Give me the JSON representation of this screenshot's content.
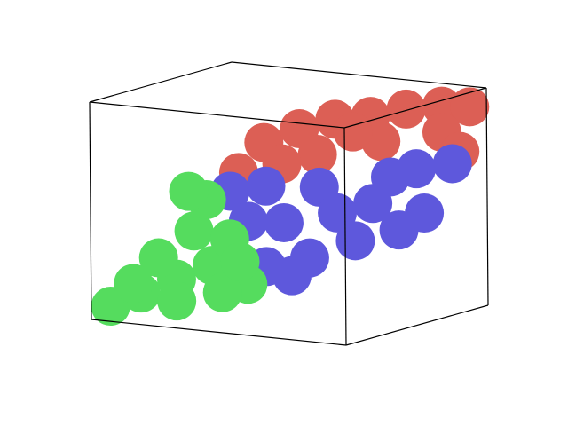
{
  "chart_data": {
    "type": "scatter3d",
    "xlim": [
      0,
      1
    ],
    "ylim": [
      0,
      1
    ],
    "zlim": [
      0,
      1
    ],
    "series": [
      {
        "color": "#dc5f55",
        "x": [
          0.08,
          0.18,
          0.32,
          0.46,
          0.6,
          0.74,
          0.88,
          0.99,
          0.39,
          0.64,
          0.88,
          0.25,
          0.95,
          0.53
        ],
        "y": [
          0.9,
          0.9,
          0.9,
          0.9,
          0.9,
          0.9,
          0.9,
          0.9,
          0.9,
          0.9,
          0.9,
          0.9,
          0.9,
          0.9
        ],
        "z": [
          0.52,
          0.67,
          0.75,
          0.81,
          0.84,
          0.89,
          0.92,
          0.93,
          0.64,
          0.73,
          0.8,
          0.58,
          0.72,
          0.76
        ]
      },
      {
        "color": "#5e58dc",
        "x": [
          0.27,
          0.41,
          0.48,
          0.62,
          0.76,
          0.9,
          0.92,
          0.92,
          0.58,
          0.34,
          0.82,
          0.83,
          0.69,
          0.41,
          0.89,
          0.51
        ],
        "y": [
          0.5,
          0.5,
          0.5,
          0.5,
          0.5,
          0.5,
          0.7,
          0.9,
          0.5,
          0.5,
          0.7,
          0.5,
          0.5,
          0.5,
          0.7,
          0.5
        ],
        "z": [
          0.53,
          0.2,
          0.41,
          0.59,
          0.36,
          0.67,
          0.47,
          0.66,
          0.26,
          0.4,
          0.38,
          0.54,
          0.48,
          0.57,
          0.67,
          0.17
        ]
      },
      {
        "color": "#55dc5e",
        "x": [
          0.02,
          0.14,
          0.28,
          0.42,
          0.56,
          0.21,
          0.35,
          0.4,
          0.11,
          0.46,
          0.49,
          0.28,
          0.33,
          0.53
        ],
        "y": [
          0.1,
          0.1,
          0.1,
          0.1,
          0.1,
          0.1,
          0.1,
          0.1,
          0.1,
          0.1,
          0.1,
          0.1,
          0.1,
          0.1
        ],
        "z": [
          0.045,
          0.12,
          0.2,
          0.28,
          0.21,
          0.29,
          0.43,
          0.58,
          0.16,
          0.16,
          0.41,
          0.1,
          0.61,
          0.31
        ]
      }
    ]
  }
}
